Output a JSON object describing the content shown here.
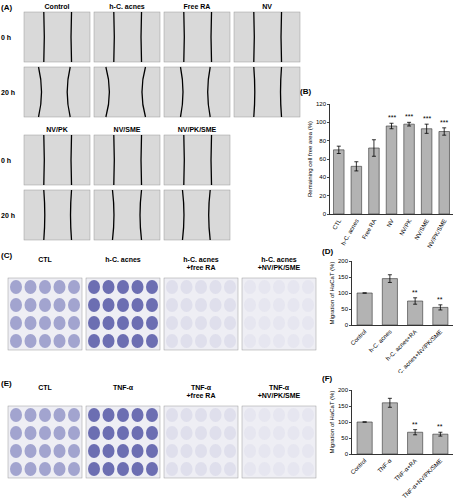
{
  "panels": [
    {
      "label": "(A)",
      "time_labels": [
        "0 h",
        "20 h"
      ],
      "rows": [
        [
          "Control",
          "h-C. acnes",
          "Free RA",
          "NV"
        ],
        [
          "NV/PK",
          "NV/SME",
          "NV/PK/SME"
        ]
      ]
    },
    {
      "label": "(C)",
      "conditions": [
        [
          "CTL"
        ],
        [
          "h-C. acnes"
        ],
        [
          "h-C. acnes",
          "+free RA"
        ],
        [
          "h-C. acnes",
          "+NV/PK/SME"
        ]
      ]
    },
    {
      "label": "(E)",
      "conditions": [
        [
          "CTL"
        ],
        [
          "TNF-α"
        ],
        [
          "TNF-α",
          "+free RA"
        ],
        [
          "TNF-α",
          "+NV/PK/SME"
        ]
      ]
    }
  ],
  "chart_data": [
    {
      "type": "bar",
      "title": "(B)",
      "y_label": "Remaining cell free area (%)",
      "categories": [
        "CTL",
        "h-C. acnes",
        "Free RA",
        "NV",
        "NV/PK",
        "NV/SME",
        "NV/PK/SME"
      ],
      "values": [
        70,
        52,
        72,
        96,
        98,
        93,
        90
      ],
      "errors": [
        4,
        5,
        9,
        3,
        2,
        5,
        4
      ],
      "significance": [
        null,
        null,
        null,
        "***",
        "***",
        "***",
        "***"
      ],
      "color": "#b3b3b3",
      "ylim": [
        0,
        120
      ],
      "yticks": [
        0,
        20,
        40,
        60,
        80,
        100,
        120
      ]
    },
    {
      "type": "bar",
      "title": "(D)",
      "y_label": "Migration of HaCaT (%)",
      "categories": [
        "Control",
        "h-C. acnes",
        "h-C. acnes+RA",
        "h-C. acnes+NV/PK/SME"
      ],
      "values": [
        100,
        145,
        75,
        55
      ],
      "errors": [
        0,
        12,
        10,
        8
      ],
      "significance": [
        null,
        null,
        "**",
        "**"
      ],
      "color": "#b3b3b3",
      "ylim": [
        0,
        200
      ],
      "yticks": [
        0,
        50,
        100,
        150,
        200
      ]
    },
    {
      "type": "bar",
      "title": "(F)",
      "y_label": "Migration of HaCaT (%)",
      "categories": [
        "Control",
        "TNF-α",
        "TNF-α+RA",
        "TNF-α+NV/PK/SME"
      ],
      "values": [
        100,
        160,
        68,
        62
      ],
      "errors": [
        0,
        14,
        8,
        6
      ],
      "significance": [
        null,
        null,
        "**",
        "**"
      ],
      "color": "#b3b3b3",
      "ylim": [
        0,
        200
      ],
      "yticks": [
        0,
        50,
        100,
        150,
        200
      ]
    }
  ]
}
